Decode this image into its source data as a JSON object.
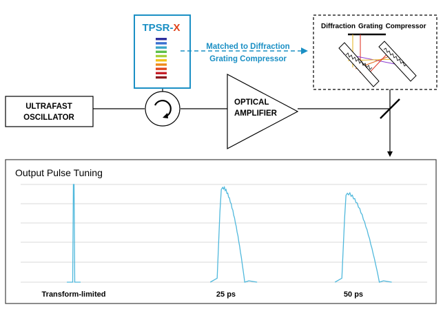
{
  "components": {
    "oscillator": {
      "line1": "ULTRAFAST",
      "line2": "OSCILLATOR"
    },
    "tpsr": {
      "prefix": "TPSR-",
      "suffix": "X"
    },
    "amplifier": {
      "line1": "OPTICAL",
      "line2": "AMPLIFIER"
    },
    "compressor": {
      "title_part1": "Diffraction",
      "title_part2": "Grating",
      "title_part3": "Compressor"
    },
    "annotation": {
      "line1": "Matched to Diffraction",
      "line2": "Grating Compressor"
    }
  },
  "colors": {
    "tpsr_accent": "#1a8fc4",
    "annotation": "#1a8fc4",
    "pulse_trace": "#4fb8dc",
    "gridline": "#d9d9d9",
    "spectrum_bars": [
      "#2e2e9e",
      "#3a6fd0",
      "#3aa7c9",
      "#5cc04a",
      "#a8cf3a",
      "#f2c21a",
      "#ef8a1a",
      "#e0441c",
      "#c6202a",
      "#8f1a1e"
    ],
    "grating_rays": [
      "#e8b92a",
      "#e03a2a",
      "#8a3ad0",
      "#e66a1a"
    ]
  },
  "icons": {
    "circulator": "circulator-arrow-icon",
    "mirror": "fold-mirror-icon"
  },
  "chart_data": {
    "type": "line",
    "title": "Output Pulse Tuning",
    "xlabel": "",
    "ylabel": "",
    "grid": true,
    "categories": [
      "Transform-limited",
      "25 ps",
      "50 ps"
    ],
    "series": [
      {
        "values": [
          1.0,
          0.97,
          0.91
        ]
      }
    ]
  }
}
